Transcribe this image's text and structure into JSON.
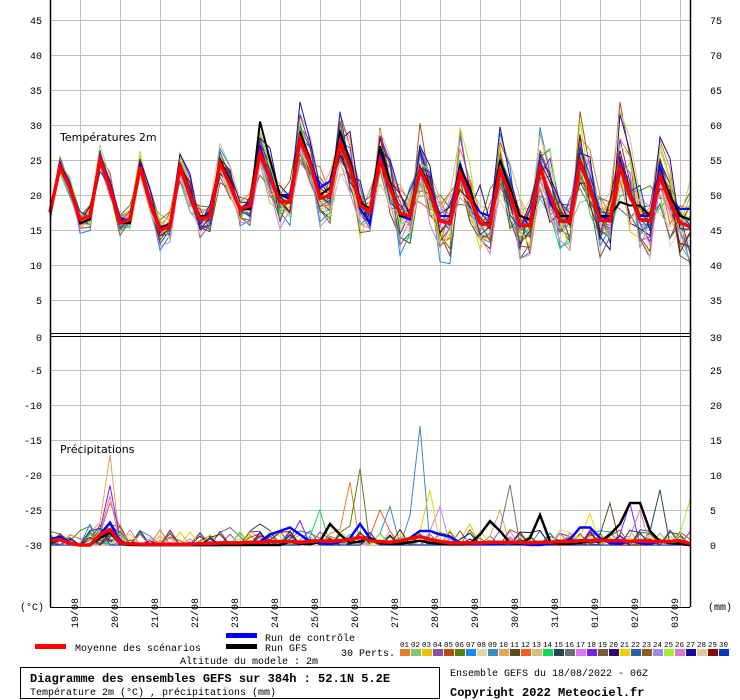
{
  "chart_data": [
    {
      "type": "line",
      "title": "Températures 2m",
      "ylabel": "(°C)",
      "ylim": [
        0,
        45
      ],
      "y_ticks": [
        "45",
        "40",
        "35",
        "30",
        "25",
        "20",
        "15",
        "10",
        "5"
      ],
      "y_ticks_right": [
        "75",
        "70",
        "65",
        "60",
        "55",
        "50",
        "45",
        "40",
        "35"
      ],
      "shared_zero_left": "0",
      "shared_zero_right": "30",
      "x_start": "18/08 06Z",
      "x_step_hours": 6,
      "grid": true,
      "mean": [
        17.5,
        24,
        21,
        16.5,
        17,
        25,
        21,
        16,
        16.5,
        24,
        19,
        15,
        15.5,
        24,
        20,
        16.5,
        17,
        24.5,
        21.5,
        18,
        18.5,
        26,
        22.5,
        19,
        19,
        28,
        24.5,
        19.5,
        20,
        27.5,
        24,
        18.5,
        17.7,
        25,
        21,
        17.4,
        17,
        23.6,
        20.5,
        16.3,
        16,
        23.1,
        19.6,
        16,
        15.7,
        23.6,
        20,
        15.7,
        15.6,
        23.9,
        20,
        16.3,
        16.2,
        24.6,
        21,
        16.4,
        16.3,
        24,
        20,
        16.5,
        16.3,
        22.7,
        19,
        16,
        15.5
      ],
      "control": [
        17.5,
        24.5,
        21.5,
        16.5,
        17,
        25.5,
        21.5,
        16.5,
        16.5,
        24.5,
        19.5,
        15,
        15.5,
        24,
        20.5,
        16.5,
        17.5,
        25,
        22,
        18,
        19,
        27,
        22,
        20,
        20,
        28.5,
        25,
        21,
        22,
        28,
        24,
        18,
        16,
        26,
        21.5,
        17,
        16.5,
        24,
        21,
        17,
        17,
        24.5,
        20,
        17.5,
        17,
        25,
        20.5,
        17,
        16.5,
        24,
        19,
        16.5,
        16,
        25,
        21.5,
        17,
        16.5,
        25,
        20,
        17,
        17,
        24,
        19.5,
        18,
        18
      ],
      "gfs": [
        17.5,
        24,
        21,
        16,
        16.5,
        25,
        21,
        16,
        16,
        24,
        19,
        15.5,
        15.5,
        24.5,
        20,
        17,
        17,
        25,
        22,
        18,
        18,
        30.5,
        25,
        20,
        19.5,
        29,
        25,
        20,
        21,
        29,
        25,
        19,
        18,
        27,
        22,
        17,
        17,
        24,
        21,
        16.5,
        16,
        24,
        21,
        16,
        16,
        25,
        21,
        17,
        16.5,
        24,
        20,
        17,
        17,
        25,
        21,
        17,
        17,
        19,
        18.5,
        18.5,
        17,
        23,
        20,
        17,
        16.5
      ],
      "member_spread_by_day": [
        1,
        1.5,
        1.5,
        2,
        2,
        2.5,
        3,
        3.5,
        3.5,
        4,
        4,
        4,
        4,
        4,
        4.5,
        4.5,
        4.5
      ],
      "legend": {
        "mean": "Moyenne des scénarios",
        "control": "Run de contrôle",
        "gfs": "Run GFS"
      }
    },
    {
      "type": "line",
      "title": "Précipitations",
      "ylabel": "(mm)",
      "ylim": [
        0,
        30
      ],
      "y_ticks": [
        "-5",
        "-10",
        "-15",
        "-20",
        "-25",
        "-30"
      ],
      "y_ticks_right": [
        "25",
        "20",
        "15",
        "10",
        "5",
        "0"
      ],
      "x_start": "18/08 06Z",
      "x_step_hours": 6,
      "grid": true,
      "mean": [
        0.6,
        0.8,
        0.2,
        0,
        0,
        1.5,
        2.2,
        0.3,
        0.2,
        0.1,
        0.1,
        0.1,
        0.1,
        0.1,
        0.1,
        0.2,
        0.2,
        0.3,
        0.3,
        0.3,
        0.4,
        0.4,
        0.5,
        0.5,
        0.5,
        0.4,
        0.5,
        0.6,
        0.5,
        0.6,
        0.8,
        1.1,
        0.6,
        0.5,
        0.4,
        0.6,
        0.9,
        1.2,
        0.8,
        0.5,
        0.3,
        0.3,
        0.3,
        0.3,
        0.4,
        0.4,
        0.4,
        0.4,
        0.3,
        0.4,
        0.4,
        0.5,
        0.5,
        0.6,
        0.6,
        0.7,
        0.6,
        0.6,
        0.5,
        0.6,
        0.5,
        0.5,
        0.5,
        0.6,
        0.2
      ],
      "control": [
        0.8,
        1.2,
        0.3,
        0,
        0,
        1.5,
        3.2,
        0.5,
        0.1,
        0,
        0,
        0,
        0,
        0,
        0,
        0,
        0,
        0,
        0.2,
        0.3,
        0.4,
        0.5,
        1.5,
        2,
        2.5,
        1.5,
        0.5,
        0.3,
        0.2,
        0.4,
        1,
        3,
        1,
        0.3,
        0.2,
        0.5,
        1,
        2,
        2,
        1.5,
        1.2,
        0.3,
        0.1,
        0.1,
        0.1,
        0.2,
        0.3,
        0.2,
        0,
        0,
        0.2,
        0.3,
        0.8,
        2.5,
        2.5,
        1,
        0.3,
        0.2,
        0.5,
        0.3,
        0.2,
        0.5,
        0.3,
        0.2,
        0
      ],
      "gfs": [
        0.5,
        0.7,
        0.2,
        0,
        0,
        1,
        1.8,
        0.2,
        0,
        0,
        0,
        0,
        0,
        0,
        0,
        0,
        0,
        0,
        0,
        0,
        0,
        0,
        0,
        0,
        0.5,
        0.2,
        0.1,
        0.5,
        3,
        1.5,
        0.3,
        0.5,
        1,
        0.3,
        0.2,
        0.2,
        0.4,
        0.6,
        0.3,
        0.2,
        0.1,
        0.1,
        0.2,
        1.5,
        3.4,
        2,
        0.3,
        0.2,
        1,
        4.3,
        0.5,
        0.2,
        0.2,
        0.3,
        0.5,
        0.5,
        1.5,
        3,
        6,
        6,
        2,
        0.5,
        0.3,
        0.2,
        0
      ],
      "member_events": [
        [
          10,
          6,
          12.9
        ],
        [
          18,
          6,
          8.5
        ],
        [
          26,
          6,
          7
        ],
        [
          12,
          6,
          6
        ],
        [
          9,
          37,
          17
        ],
        [
          6,
          31,
          10.9
        ],
        [
          1,
          30,
          9
        ],
        [
          21,
          38,
          7.9
        ],
        [
          17,
          39,
          5.5
        ],
        [
          16,
          46,
          8.6
        ],
        [
          15,
          61,
          7.9
        ],
        [
          11,
          56,
          6
        ],
        [
          18,
          58,
          6
        ],
        [
          26,
          59,
          5
        ],
        [
          12,
          33,
          5
        ],
        [
          14,
          27,
          5
        ],
        [
          18,
          25,
          3.5
        ],
        [
          15,
          21,
          3
        ],
        [
          16,
          18,
          2.5
        ],
        [
          9,
          34,
          5.5
        ],
        [
          10,
          45,
          5
        ],
        [
          21,
          54,
          4.5
        ],
        [
          25,
          64,
          6.5
        ],
        [
          3,
          42,
          3
        ]
      ]
    }
  ],
  "x_axis": {
    "dates": [
      "19/08",
      "20/08",
      "21/08",
      "22/08",
      "23/08",
      "24/08",
      "25/08",
      "26/08",
      "27/08",
      "28/08",
      "29/08",
      "30/08",
      "31/08",
      "01/09",
      "02/09",
      "03/09"
    ]
  },
  "legend": {
    "mean_label": "Moyenne des scénarios",
    "control_label": "Run de contrôle",
    "gfs_label": "Run GFS",
    "altitude": "Altitude du modele : 2m",
    "perts_label": "30 Perts.",
    "perts_numbers": [
      "01",
      "02",
      "03",
      "04",
      "05",
      "06",
      "07",
      "08",
      "09",
      "10",
      "11",
      "12",
      "13",
      "14",
      "15",
      "16",
      "17",
      "18",
      "19",
      "20",
      "21",
      "22",
      "23",
      "24",
      "25",
      "26",
      "27",
      "28",
      "29",
      "30"
    ],
    "perts_colors": [
      "#e67e30",
      "#85c46a",
      "#efc000",
      "#8a4fa8",
      "#b04f10",
      "#588010",
      "#1a86f0",
      "#e6d4aa",
      "#3a8cba",
      "#e4a45a",
      "#5e4a1c",
      "#f06020",
      "#d4c07a",
      "#10d860",
      "#284458",
      "#687078",
      "#e078ee",
      "#7a20ee",
      "#7a5a30",
      "#300870",
      "#f0d000",
      "#2860a0",
      "#905a20",
      "#a08ae8",
      "#a0f030",
      "#d878d0",
      "#1a0c98",
      "#e0c8a0",
      "#880808",
      "#0838c0"
    ]
  },
  "info": {
    "title": "Diagramme des ensembles GEFS sur 384h : 52.1N 5.2E",
    "subtitle": "Température 2m (°C) , précipitations (mm)",
    "run": "Ensemble GEFS du 18/08/2022 - 06Z",
    "copyright": "Copyright 2022 Meteociel.fr"
  },
  "colors": {
    "mean": "#ff0000",
    "control": "#0000ff",
    "gfs": "#000000",
    "grid": "#c0c0c0"
  }
}
